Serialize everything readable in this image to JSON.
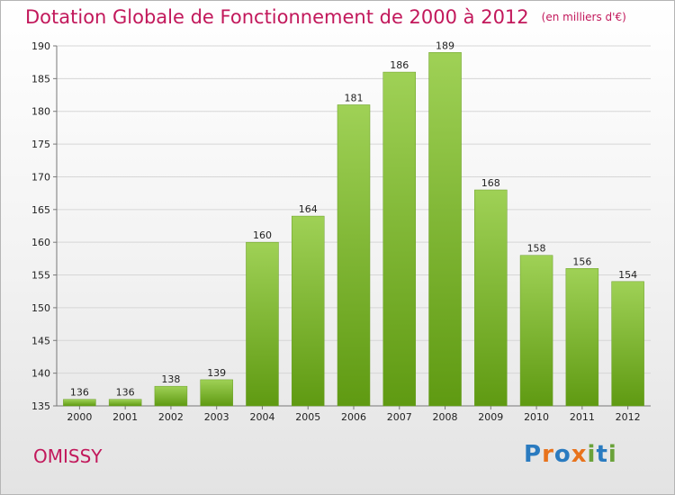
{
  "header": {
    "title": "Dotation Globale de Fonctionnement de 2000 à 2012",
    "unit": "(en milliers d'€)"
  },
  "commune": "OMISSY",
  "brand": {
    "name": "Proxiti",
    "letters": [
      {
        "char": "P",
        "color": "#2a7bc0"
      },
      {
        "char": "r",
        "color": "#e8731c"
      },
      {
        "char": "o",
        "color": "#2a7bc0"
      },
      {
        "char": "x",
        "color": "#e8731c"
      },
      {
        "char": "i",
        "color": "#6aa23a"
      },
      {
        "char": "t",
        "color": "#2a7bc0"
      },
      {
        "char": "i",
        "color": "#6aa23a"
      }
    ]
  },
  "colors": {
    "title": "#c2185b",
    "bar_top": "#9fd156",
    "bar_bottom": "#5f9a12",
    "grid": "#d6d6d6",
    "axis_text": "#222222"
  },
  "chart_data": {
    "type": "bar",
    "categories": [
      "2000",
      "2001",
      "2002",
      "2003",
      "2004",
      "2005",
      "2006",
      "2007",
      "2008",
      "2009",
      "2010",
      "2011",
      "2012"
    ],
    "values": [
      136,
      136,
      138,
      139,
      160,
      164,
      181,
      186,
      189,
      168,
      158,
      156,
      154
    ],
    "title": "Dotation Globale de Fonctionnement de 2000 à 2012",
    "subtitle": "(en milliers d'€)",
    "xlabel": "",
    "ylabel": "",
    "ylim": [
      135,
      190
    ],
    "yticks": [
      135,
      140,
      145,
      150,
      155,
      160,
      165,
      170,
      175,
      180,
      185,
      190
    ],
    "grid": true,
    "data_labels": true
  }
}
